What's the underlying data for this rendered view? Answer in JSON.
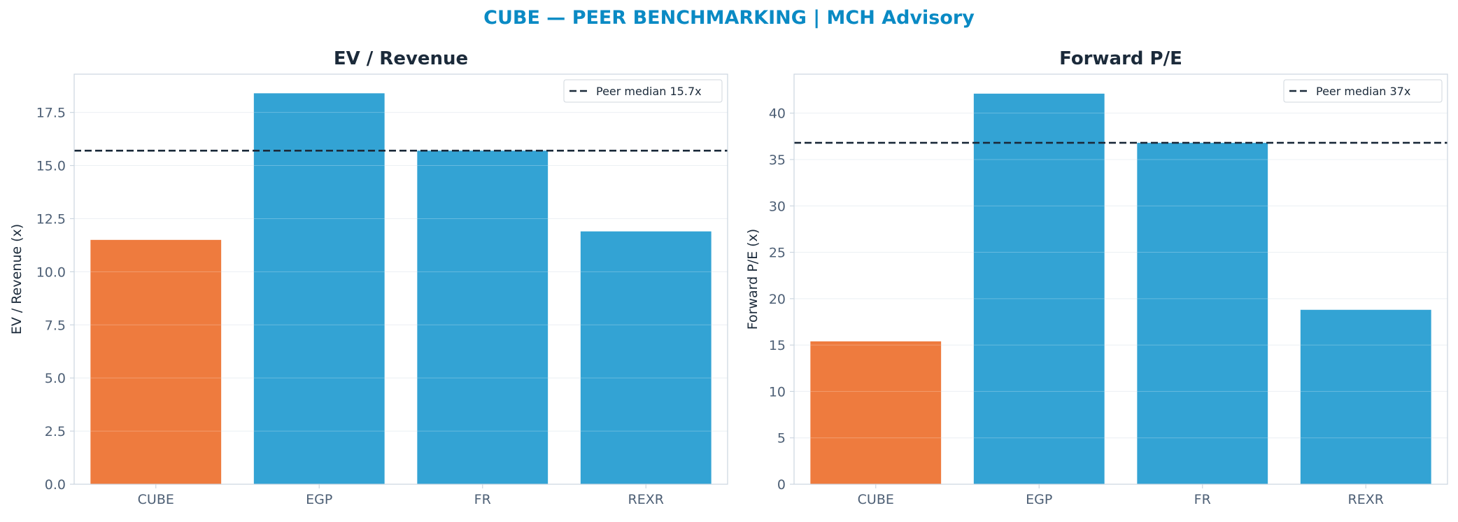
{
  "suptitle": "CUBE — PEER BENCHMARKING | MCH Advisory",
  "colors": {
    "title": "#0a8ac4",
    "heading": "#1b2a3a",
    "tick": "#4d5f75",
    "axis": "#ccd6e0",
    "grid": "#e6ebf0",
    "subject": "#ee7b3e",
    "peer": "#33a3d4",
    "median": "#1b2a3a"
  },
  "chart_data": [
    {
      "type": "bar",
      "title": "EV / Revenue",
      "xlabel": "",
      "ylabel": "EV / Revenue (x)",
      "categories": [
        "CUBE",
        "EGP",
        "FR",
        "REXR"
      ],
      "values": [
        11.5,
        18.4,
        15.7,
        11.9
      ],
      "highlight": "CUBE",
      "ylim": [
        0,
        19.3
      ],
      "yticks": [
        0,
        2.5,
        5,
        7.5,
        10,
        12.5,
        15,
        17.5
      ],
      "ytick_labels": [
        "0.0",
        "2.5",
        "5.0",
        "7.5",
        "10.0",
        "12.5",
        "15.0",
        "17.5"
      ],
      "grid": true,
      "reference_line": {
        "value": 15.7,
        "label": "Peer median 15.7x",
        "style": "dashed"
      },
      "legend_position": "top-right"
    },
    {
      "type": "bar",
      "title": "Forward P/E",
      "xlabel": "",
      "ylabel": "Forward P/E (x)",
      "categories": [
        "CUBE",
        "EGP",
        "FR",
        "REXR"
      ],
      "values": [
        15.4,
        42.1,
        36.8,
        18.8
      ],
      "highlight": "CUBE",
      "ylim": [
        0,
        44.2
      ],
      "yticks": [
        0,
        5,
        10,
        15,
        20,
        25,
        30,
        35,
        40
      ],
      "ytick_labels": [
        "0",
        "5",
        "10",
        "15",
        "20",
        "25",
        "30",
        "35",
        "40"
      ],
      "grid": true,
      "reference_line": {
        "value": 36.8,
        "label": "Peer median 37x",
        "style": "dashed"
      },
      "legend_position": "top-right"
    }
  ]
}
